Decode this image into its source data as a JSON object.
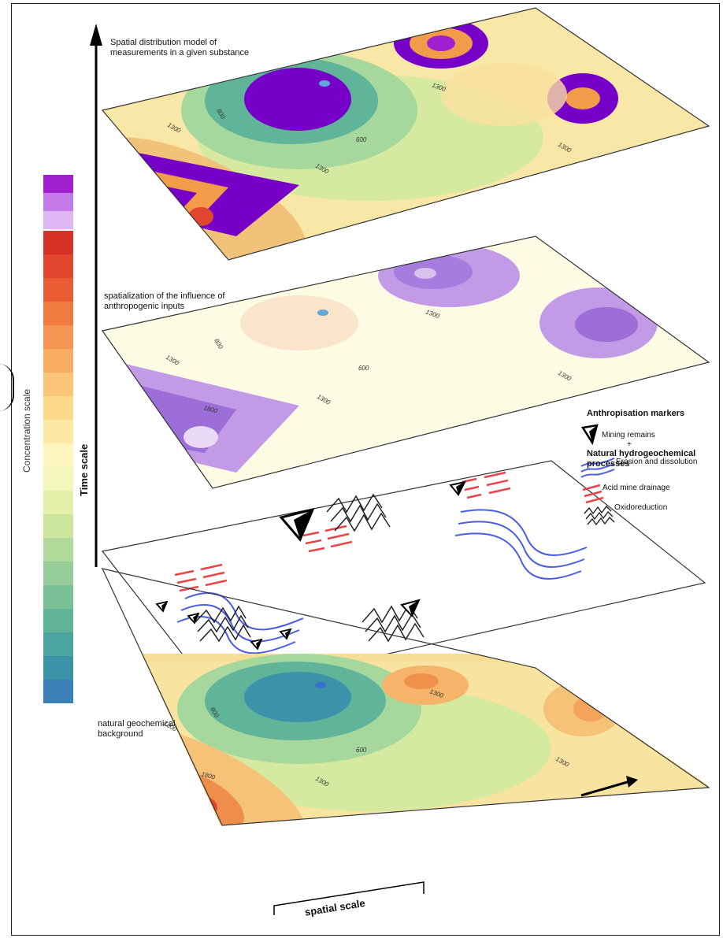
{
  "layers": {
    "top_label": "Spatial distribution model of measurements in a given substance",
    "anthropogenic_label": "spatialization of the influence of anthropogenic inputs",
    "background_label": "natural geochemical background"
  },
  "contours": {
    "c1300": "1300",
    "c800": "800",
    "c600": "600",
    "c1800": "1800"
  },
  "legend": {
    "title": "Anthropisation markers",
    "mining": "Mining remains",
    "plus": "+",
    "natural_title": "Natural hydrogeochemical processes",
    "erosion": "Erosion and dissolution",
    "acid": "Acid mine drainage",
    "oxido": "Oxidoreduction"
  },
  "axes": {
    "concentration": "Concentration scale",
    "time": "Time scale",
    "spatial": "spatial scale"
  },
  "colors": {
    "scale": [
      "#a020d0",
      "#c47ae8",
      "#ddb6f2",
      "#d73027",
      "#e2462f",
      "#ea5c33",
      "#f07a3f",
      "#f59553",
      "#f8ad63",
      "#fbc477",
      "#fdd98b",
      "#fee8a4",
      "#fff6bf",
      "#f4f7bb",
      "#e2f0a8",
      "#cbe59d",
      "#b1d99a",
      "#96cd98",
      "#7ac197",
      "#5fb49a",
      "#4aa59f",
      "#3c92a8",
      "#3a7fb5"
    ]
  }
}
